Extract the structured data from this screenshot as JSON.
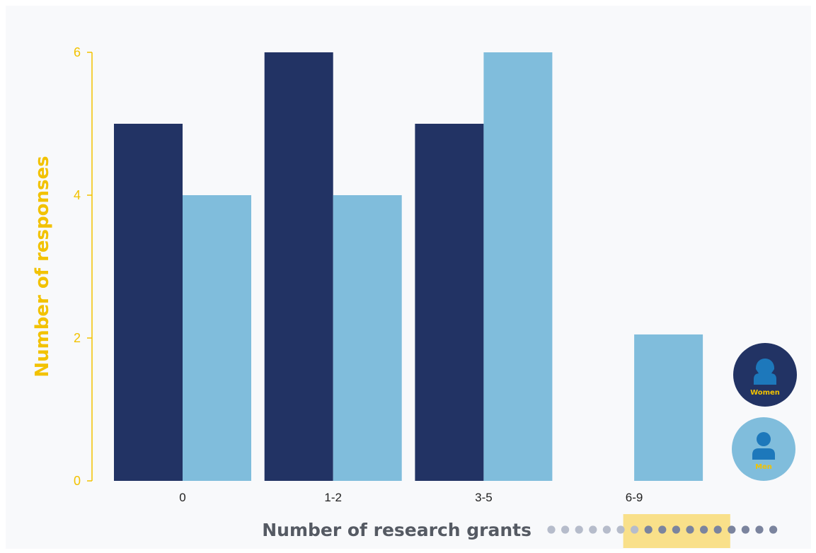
{
  "chart_data": {
    "type": "bar",
    "categories": [
      "0",
      "1-2",
      "3-5",
      "6-9"
    ],
    "series": [
      {
        "name": "Women",
        "values": [
          5,
          6,
          5,
          0
        ]
      },
      {
        "name": "Men",
        "values": [
          4,
          4,
          6,
          2.05
        ]
      }
    ],
    "xlabel": "Number of research grants",
    "ylabel": "Number of responses",
    "ylim": [
      0,
      6
    ],
    "yticks": [
      "0",
      "2",
      "4",
      "6"
    ],
    "grid": false,
    "legend_position": "right"
  },
  "colors": {
    "women": "#223364",
    "men": "#80bddc",
    "accent": "#f2c200",
    "highlight": "#f9e08a",
    "icon_fill": "#1d78bb",
    "dot_light": "#b6bccb",
    "dot_dark": "#7b849e",
    "panel": "#f8f9fb"
  },
  "decoration": {
    "dot_count": 17,
    "dot_light_count": 7,
    "highlight_from_dot": 6,
    "highlight_to_dot": 13,
    "legend_icons": [
      "woman-icon",
      "man-icon"
    ]
  }
}
